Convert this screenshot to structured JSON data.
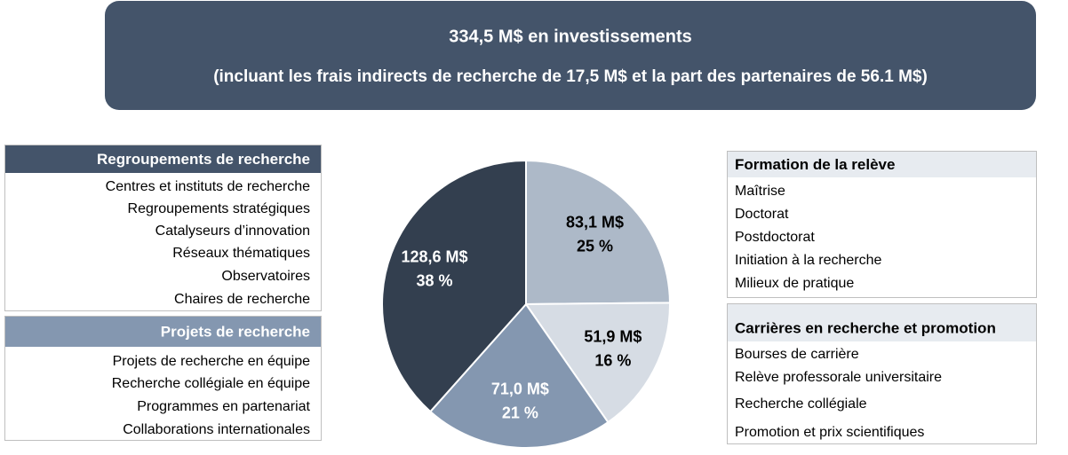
{
  "chart_data": {
    "type": "pie",
    "title": "334,5 M$ en investissements",
    "subtitle": "(incluant les frais indirects de recherche de 17,5 M$ et la part des partenaires de 56.1 M$)",
    "values": [
      83.1,
      51.9,
      71.0,
      128.6
    ],
    "value_labels": [
      "83,1 M$",
      "51,9 M$",
      "71,0 M$",
      "128,6 M$"
    ],
    "percentages": [
      25,
      16,
      21,
      38
    ],
    "percentage_labels": [
      "25 %",
      "16 %",
      "21 %",
      "38 %"
    ],
    "colors": [
      "#adb9c8",
      "#d6dce4",
      "#8497b0",
      "#333f4f"
    ]
  },
  "panels": [
    {
      "title": "Regroupements de recherche",
      "items": [
        "Centres et instituts de recherche",
        "Regroupements stratégiques",
        "Catalyseurs d’innovation",
        "Réseaux thématiques",
        "Observatoires",
        "Chaires de recherche"
      ]
    },
    {
      "title": "Projets de recherche",
      "items": [
        "Projets de recherche en équipe",
        "Recherche collégiale en équipe",
        "Programmes en partenariat",
        "Collaborations internationales"
      ]
    },
    {
      "title": "Formation de la relève",
      "items": [
        "Maîtrise",
        "Doctorat",
        "Postdoctorat",
        "Initiation à la recherche",
        "Milieux de pratique"
      ]
    },
    {
      "title": "Carrières en recherche et promotion",
      "items": [
        "Bourses de carrière",
        "Relève professorale universitaire",
        "Recherche collégiale",
        "Promotion et prix scientifiques"
      ]
    }
  ]
}
